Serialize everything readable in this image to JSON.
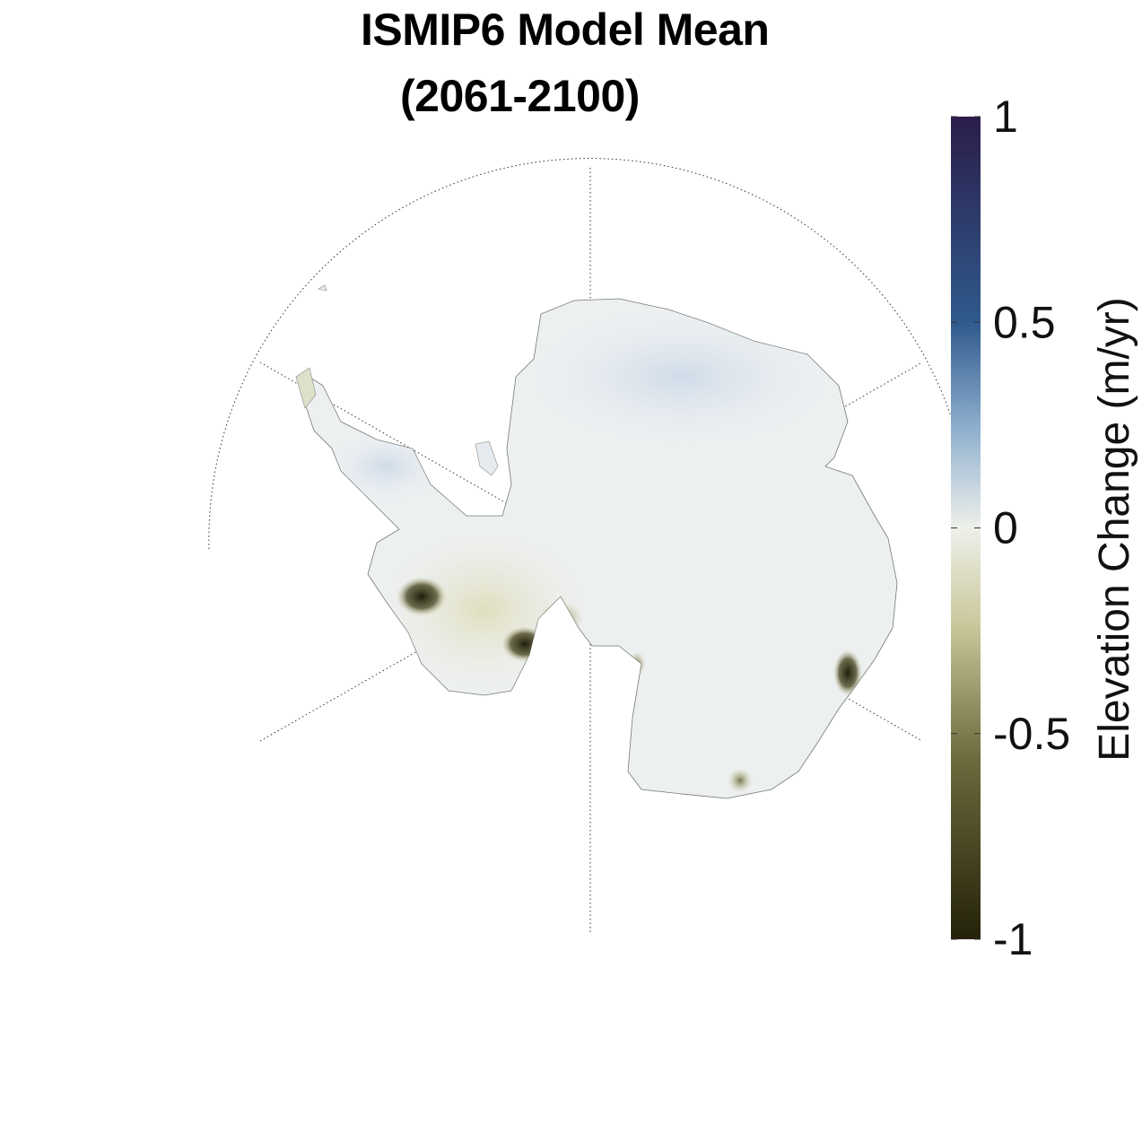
{
  "title": {
    "line1": "ISMIP6 Model Mean",
    "line2": "(2061-2100)"
  },
  "colorbar": {
    "label": "Elevation Change (m/yr)",
    "min": -1,
    "max": 1,
    "ticks": [
      {
        "value": 1,
        "label": "1"
      },
      {
        "value": 0.5,
        "label": "0.5"
      },
      {
        "value": 0,
        "label": "0"
      },
      {
        "value": -0.5,
        "label": "-0.5"
      },
      {
        "value": -1,
        "label": "-1"
      }
    ],
    "colors": {
      "top": "#2b1d4a",
      "upper": "#2f5a8c",
      "mid_upper": "#8fb0cf",
      "zero": "#eef0ea",
      "mid_lower": "#c9c79a",
      "lower": "#6d6a3d",
      "bottom": "#242209"
    }
  },
  "map": {
    "projection": "south polar stereographic",
    "region": "Antarctica",
    "graticule": "dotted",
    "regions_of_loss": [
      "Amundsen Sea sector",
      "Totten region",
      "Wilkes Land coast"
    ]
  }
}
